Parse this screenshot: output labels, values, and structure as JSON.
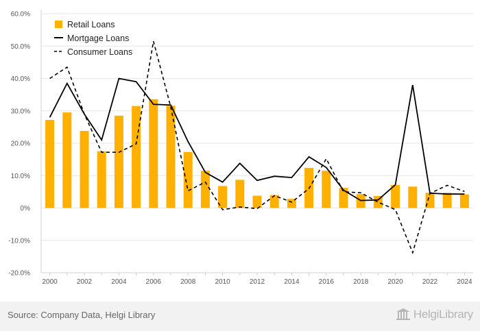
{
  "chart_data": {
    "type": "bar",
    "x": [
      "2000",
      "2001",
      "2002",
      "2003",
      "2004",
      "2005",
      "2006",
      "2007",
      "2008",
      "2009",
      "2010",
      "2011",
      "2012",
      "2013",
      "2014",
      "2015",
      "2016",
      "2017",
      "2018",
      "2019",
      "2020",
      "2021",
      "2022",
      "2023",
      "2024"
    ],
    "x_tick_labels": [
      "2000",
      "2002",
      "2004",
      "2006",
      "2008",
      "2010",
      "2012",
      "2014",
      "2016",
      "2018",
      "2020",
      "2022",
      "2024"
    ],
    "y_tick_labels": [
      "60.0%",
      "50.0%",
      "40.0%",
      "30.0%",
      "20.0%",
      "10.0%",
      "0%",
      "-10.0%",
      "-20.0%"
    ],
    "ylim": [
      -20,
      60
    ],
    "yticks": [
      60,
      50,
      40,
      30,
      20,
      10,
      0,
      -10,
      -20
    ],
    "grid": true,
    "legend_position": "top-left",
    "series": [
      {
        "name": "Retail Loans",
        "type": "bar",
        "color": "#FFB000",
        "values": [
          27.2,
          29.5,
          23.8,
          17.5,
          28.5,
          31.5,
          33.6,
          31.6,
          17.3,
          11.5,
          6.8,
          8.7,
          3.8,
          4.0,
          2.8,
          12.4,
          11.5,
          6.2,
          4.3,
          3.7,
          7.1,
          6.6,
          4.7,
          4.7,
          4.2
        ]
      },
      {
        "name": "Mortgage Loans",
        "type": "line",
        "color": "#000000",
        "dash": "solid",
        "values": [
          28.0,
          38.5,
          29.0,
          21.0,
          40.0,
          39.0,
          32.0,
          31.8,
          20.5,
          11.0,
          8.0,
          13.8,
          8.5,
          9.8,
          9.4,
          15.8,
          12.5,
          5.5,
          2.3,
          2.5,
          7.2,
          38.0,
          4.6,
          4.3,
          4.3
        ]
      },
      {
        "name": "Consumer Loans",
        "type": "line",
        "color": "#000000",
        "dash": "dashed",
        "values": [
          40.0,
          43.5,
          29.0,
          17.2,
          17.2,
          19.8,
          51.5,
          31.2,
          5.3,
          8.0,
          -0.5,
          0.3,
          -0.2,
          3.8,
          1.8,
          6.0,
          15.2,
          5.0,
          4.7,
          1.8,
          -0.5,
          -13.8,
          4.5,
          7.0,
          5.1
        ]
      }
    ]
  },
  "footer": {
    "source": "Source: Company Data, Helgi Library",
    "brand": "HelgiLibrary"
  }
}
